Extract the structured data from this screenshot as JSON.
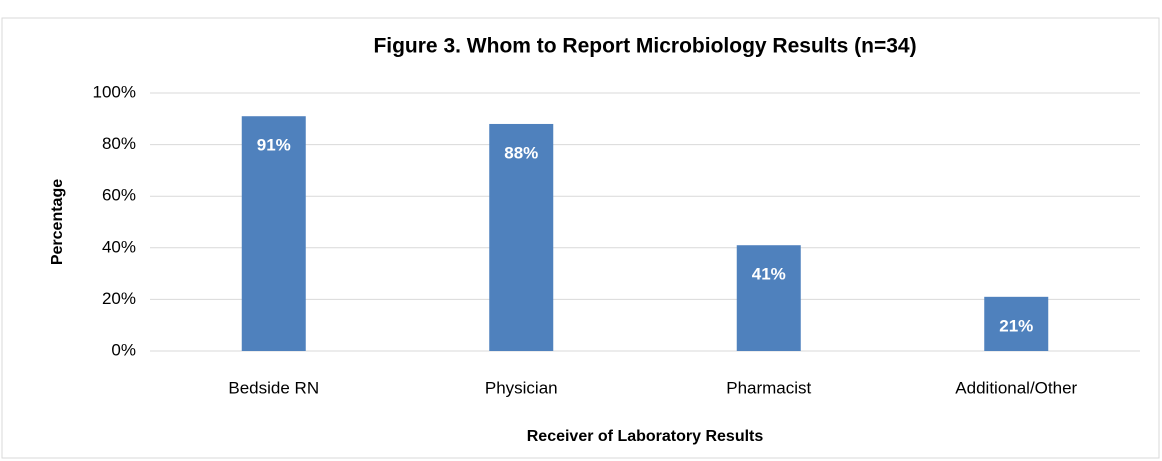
{
  "chart_data": {
    "type": "bar",
    "title": "Figure 3. Whom to Report Microbiology Results (n=34)",
    "x_label": "Receiver of Laboratory Results",
    "y_label": "Percentage",
    "categories": [
      "Bedside RN",
      "Physician",
      "Pharmacist",
      "Additional/Other"
    ],
    "values": [
      91,
      88,
      41,
      21
    ],
    "value_labels": [
      "91%",
      "88%",
      "41%",
      "21%"
    ],
    "color": "#4f81bd",
    "ylim": [
      0,
      100
    ],
    "yticks": [
      {
        "value": 0,
        "label": "0%"
      },
      {
        "value": 20,
        "label": "20%"
      },
      {
        "value": 40,
        "label": "40%"
      },
      {
        "value": 60,
        "label": "60%"
      },
      {
        "value": 80,
        "label": "80%"
      },
      {
        "value": 100,
        "label": "100%"
      }
    ],
    "grid": true
  }
}
